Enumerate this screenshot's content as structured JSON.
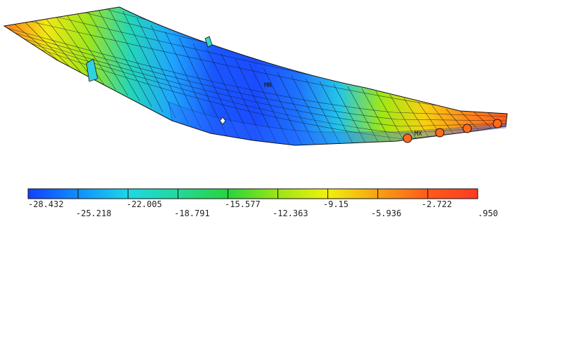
{
  "contour": {
    "min_marker": "MN",
    "max_marker": "MX",
    "legend": {
      "colors": [
        "#1040ff",
        "#0f8fff",
        "#1dd7e6",
        "#22d99a",
        "#27d43c",
        "#9be614",
        "#f1f10d",
        "#f7a113",
        "#ff5a1a",
        "#ff3b24"
      ],
      "top_labels": [
        "-28.432",
        "-22.005",
        "-15.577",
        "-9.15",
        "-2.722"
      ],
      "bottom_labels": [
        "-25.218",
        "-18.791",
        "-12.363",
        "-5.936",
        ".950"
      ]
    }
  }
}
